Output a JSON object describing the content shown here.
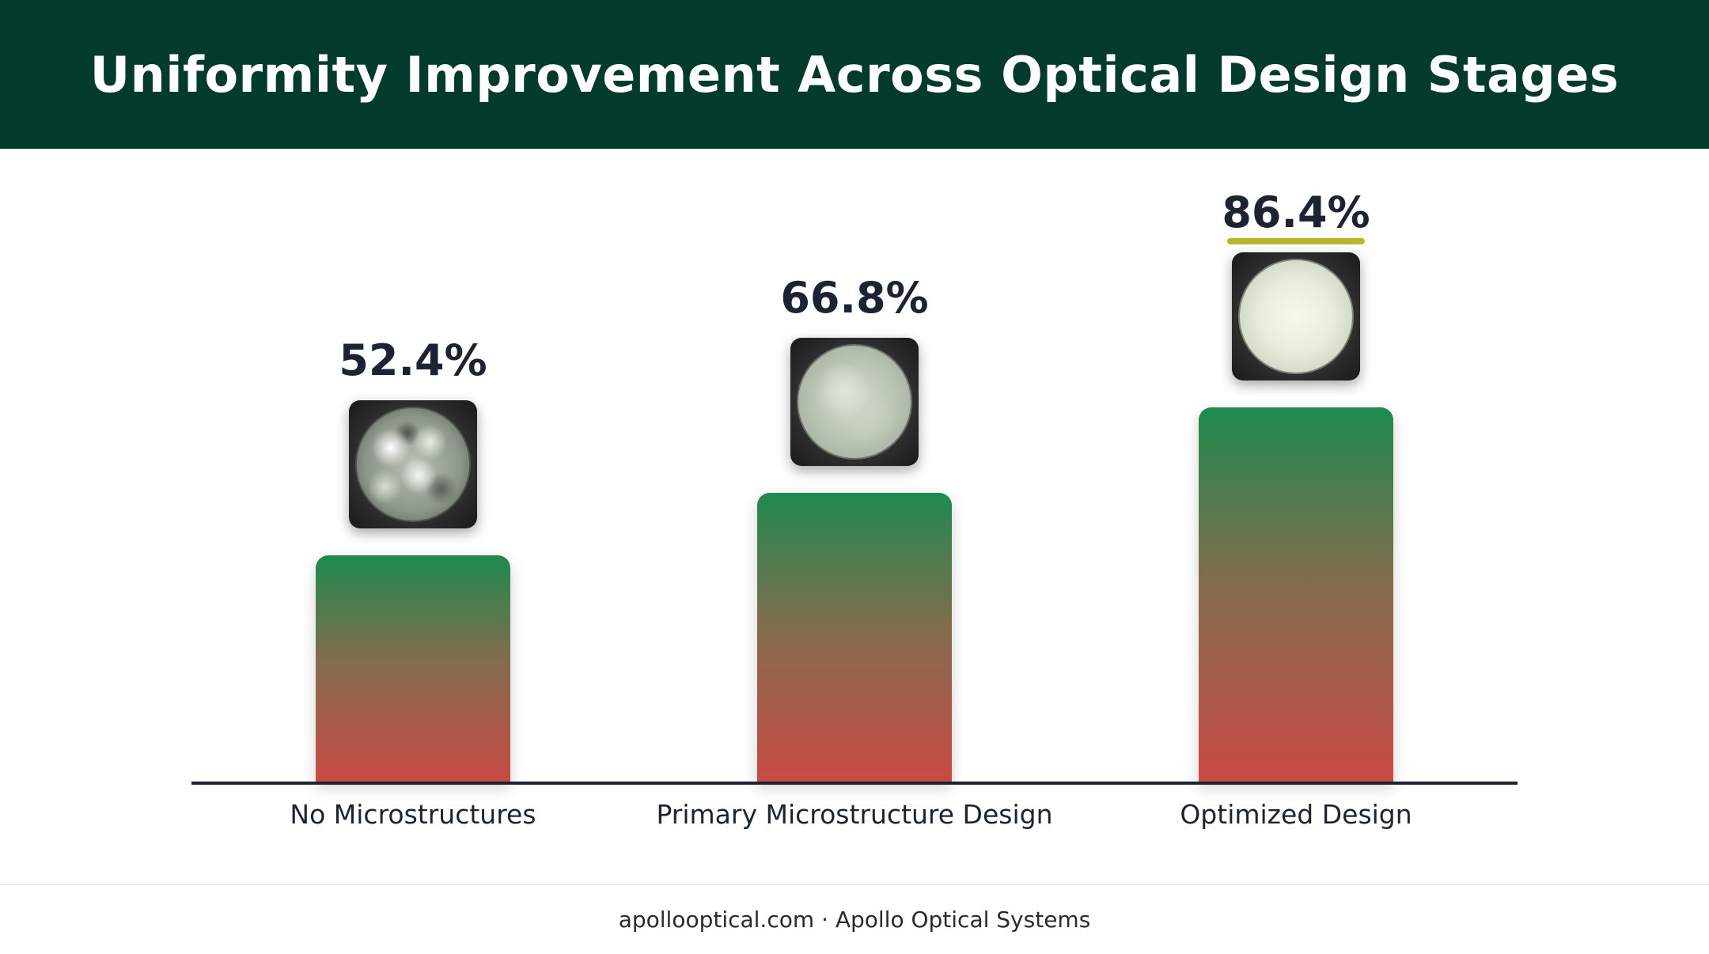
{
  "header": {
    "title": "Uniformity Improvement Across Optical Design Stages"
  },
  "chart_data": {
    "type": "bar",
    "title": "Uniformity Improvement Across Optical Design Stages",
    "categories": [
      "No Microstructures",
      "Primary Microstructure Design",
      "Optimized Design"
    ],
    "values": [
      52.4,
      66.8,
      86.4
    ],
    "value_labels": [
      "52.4%",
      "66.8%",
      "86.4%"
    ],
    "xlabel": "",
    "ylabel": "",
    "ylim": [
      0,
      100
    ],
    "grid": false,
    "legend": "none",
    "highlighted_category": "Optimized Design",
    "colors": {
      "bar_top": "#1f8a4f",
      "bar_bottom": "#c94a43",
      "highlight": "#b8b82a"
    }
  },
  "footer": {
    "text": "apollooptical.com · Apollo Optical Systems"
  },
  "colors": {
    "header_bg": "#023b2b",
    "text_dark": "#1c2333"
  }
}
